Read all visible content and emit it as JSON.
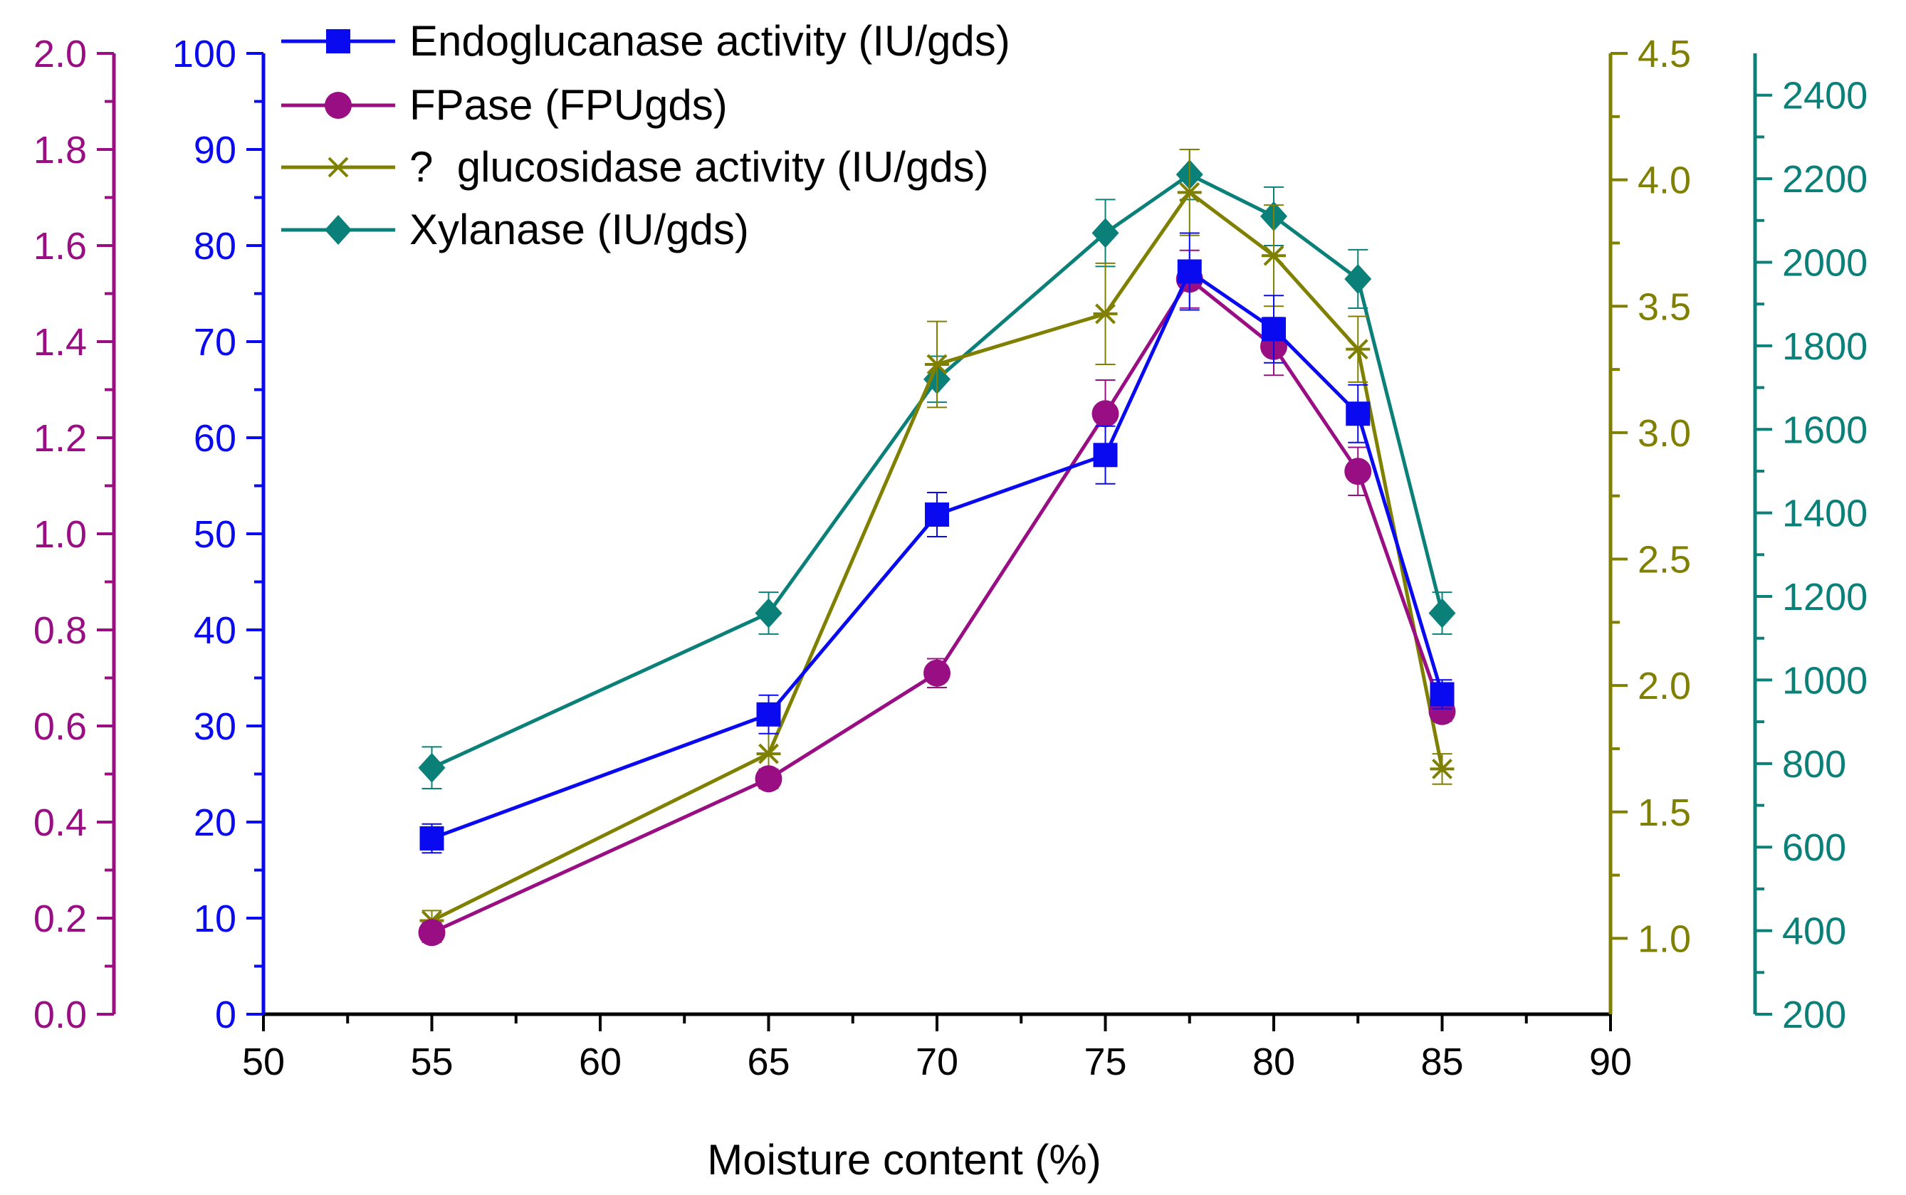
{
  "chart_data": {
    "type": "line",
    "xlabel": "Moisture content (%)",
    "xlim": [
      50,
      90
    ],
    "xticks": [
      50,
      55,
      60,
      65,
      70,
      75,
      80,
      85,
      90
    ],
    "x": [
      55,
      65,
      70,
      75,
      77.5,
      80,
      82.5,
      85
    ],
    "axes": [
      {
        "id": "fpase",
        "color": "#990E83",
        "ylim": [
          0.0,
          2.0
        ],
        "ticks": [
          "0.0",
          "0.2",
          "0.4",
          "0.6",
          "0.8",
          "1.0",
          "1.2",
          "1.4",
          "1.6",
          "1.8",
          "2.0"
        ],
        "tick_values": [
          0,
          0.2,
          0.4,
          0.6,
          0.8,
          1.0,
          1.2,
          1.4,
          1.6,
          1.8,
          2.0
        ]
      },
      {
        "id": "endo",
        "color": "#0A0AF0",
        "ylim": [
          0,
          100
        ],
        "ticks": [
          "0",
          "10",
          "20",
          "30",
          "40",
          "50",
          "60",
          "70",
          "80",
          "90",
          "100"
        ],
        "tick_values": [
          0,
          10,
          20,
          30,
          40,
          50,
          60,
          70,
          80,
          90,
          100
        ]
      },
      {
        "id": "gluco",
        "color": "#808000",
        "ylim": [
          0.7,
          4.5
        ],
        "ticks": [
          "1.0",
          "1.5",
          "2.0",
          "2.5",
          "3.0",
          "3.5",
          "4.0",
          "4.5"
        ],
        "tick_values": [
          1.0,
          1.5,
          2.0,
          2.5,
          3.0,
          3.5,
          4.0,
          4.5
        ]
      },
      {
        "id": "xyl",
        "color": "#0A8079",
        "ylim": [
          200,
          2500
        ],
        "ticks": [
          "200",
          "400",
          "600",
          "800",
          "1000",
          "1200",
          "1400",
          "1600",
          "1800",
          "2000",
          "2200",
          "2400"
        ],
        "tick_values": [
          200,
          400,
          600,
          800,
          1000,
          1200,
          1400,
          1600,
          1800,
          2000,
          2200,
          2400
        ]
      }
    ],
    "series": [
      {
        "name": "Endoglucanase activity (IU/gds)",
        "axis": "endo",
        "color": "#0A0AF0",
        "marker": "square",
        "values": [
          18.3,
          31.2,
          52.0,
          58.2,
          77.3,
          71.3,
          62.5,
          33.3
        ],
        "errors": [
          1.5,
          2.0,
          2.3,
          3.0,
          4.0,
          3.5,
          3.0,
          1.5
        ]
      },
      {
        "name": "FPase (FPUgds)",
        "axis": "fpase",
        "color": "#990E83",
        "marker": "circle",
        "values": [
          0.17,
          0.49,
          0.71,
          1.25,
          1.53,
          1.39,
          1.13,
          0.63
        ],
        "errors": [
          0.02,
          0.02,
          0.03,
          0.07,
          0.06,
          0.06,
          0.05,
          0.02
        ]
      },
      {
        "name": "?  glucosidase activity (IU/gds)",
        "axis": "gluco",
        "color": "#808000",
        "marker": "asterisk",
        "values": [
          1.07,
          1.73,
          3.27,
          3.47,
          3.95,
          3.7,
          3.33,
          1.67
        ],
        "errors": [
          0.04,
          0.12,
          0.17,
          0.2,
          0.17,
          0.2,
          0.13,
          0.06
        ]
      },
      {
        "name": "Xylanase (IU/gds)",
        "axis": "xyl",
        "color": "#0A8079",
        "marker": "diamond",
        "values": [
          790,
          1160,
          1720,
          2070,
          2210,
          2110,
          1960,
          1160
        ],
        "errors": [
          50,
          50,
          55,
          80,
          60,
          70,
          70,
          50
        ]
      }
    ]
  }
}
